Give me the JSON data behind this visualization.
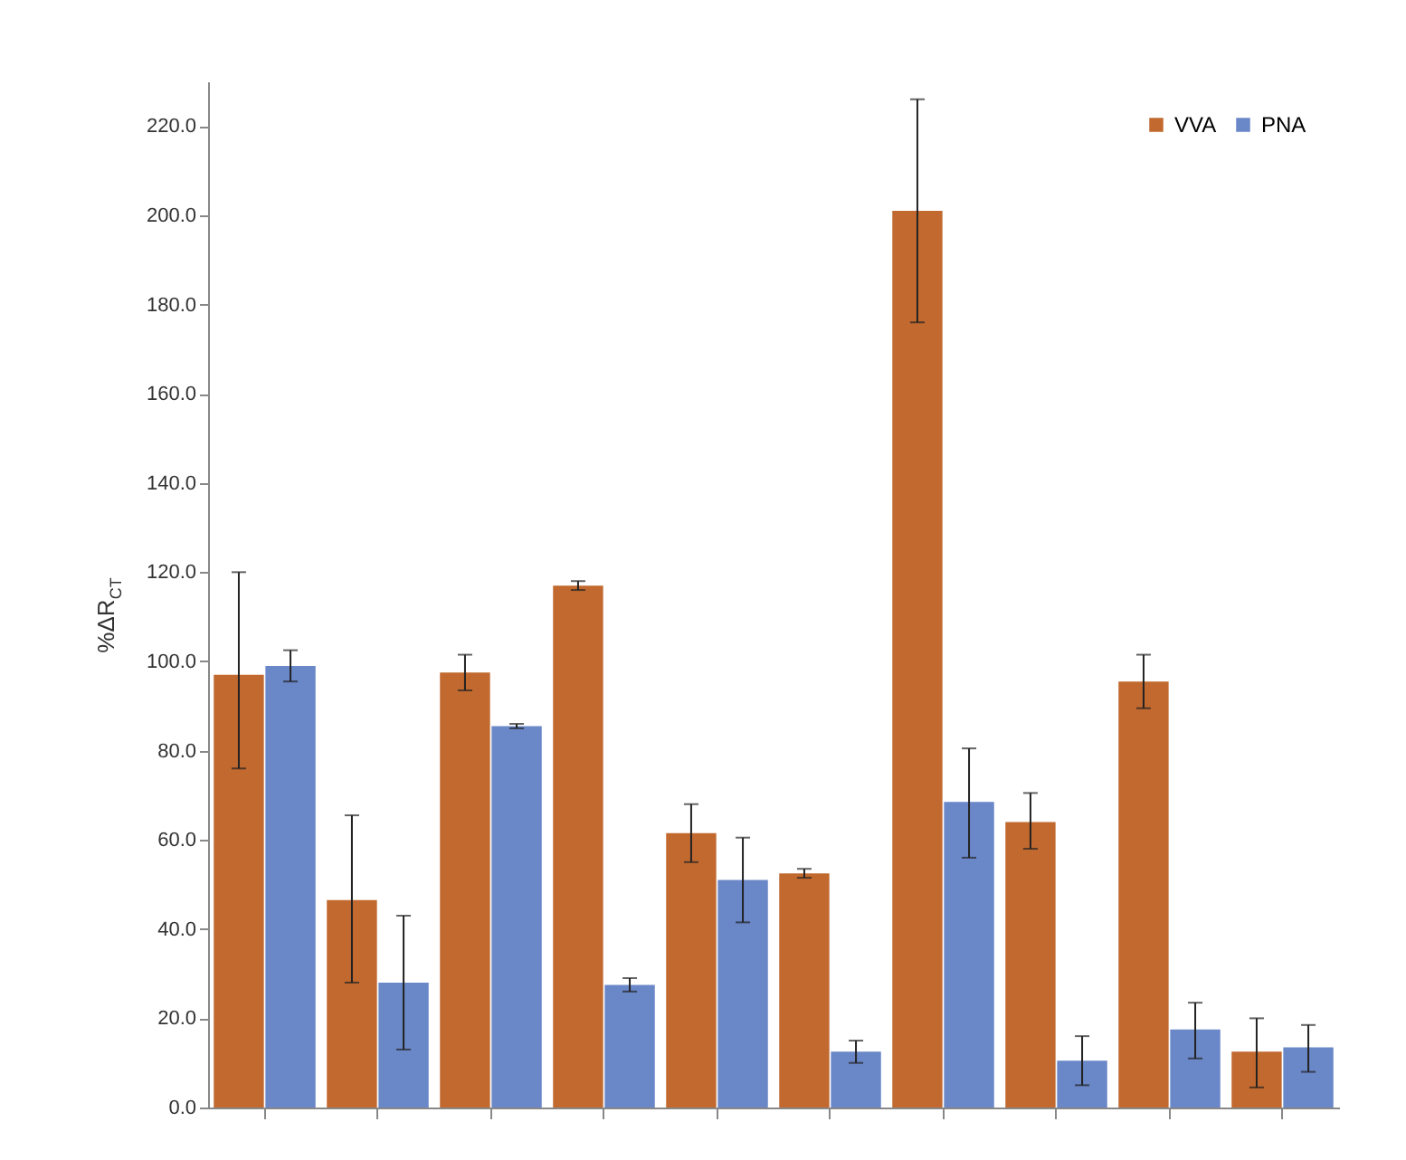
{
  "chart_data": {
    "type": "bar",
    "ylabel": "%ΔR$_{CT}$",
    "categories": [
      null,
      null,
      null,
      null,
      null,
      null,
      null,
      null,
      null,
      null
    ],
    "series": [
      {
        "name": "VVA",
        "color": "#c1692f",
        "values": [
          97,
          46.5,
          97.5,
          117,
          61.5,
          52.5,
          201,
          64,
          95.5,
          12.5
        ],
        "errors": [
          [
            76,
            120
          ],
          [
            28,
            65.5
          ],
          4,
          1,
          6.5,
          1,
          [
            176,
            226
          ],
          [
            58,
            70.5
          ],
          6,
          [
            4.5,
            20
          ]
        ]
      },
      {
        "name": "PNA",
        "color": "#6a87c8",
        "values": [
          99,
          28,
          85.5,
          27.5,
          51,
          12.5,
          68.5,
          10.5,
          17.5,
          13.5
        ],
        "errors": [
          3.5,
          [
            13,
            43
          ],
          0.5,
          1.5,
          9.5,
          2.5,
          [
            56,
            80.5
          ],
          [
            5,
            16
          ],
          [
            11,
            23.5
          ],
          [
            8,
            18.5
          ]
        ]
      }
    ],
    "ylim": [
      0,
      230
    ],
    "yticks": [
      {
        "value": 0,
        "label": "0.0"
      },
      {
        "value": 20,
        "label": "20.0"
      },
      {
        "value": 40,
        "label": "40.0"
      },
      {
        "value": 60,
        "label": "60.0"
      },
      {
        "value": 80,
        "label": "80.0"
      },
      {
        "value": 100,
        "label": "100.0"
      },
      {
        "value": 120,
        "label": "120.0"
      },
      {
        "value": 140,
        "label": "140.0"
      },
      {
        "value": 160,
        "label": "160.0"
      },
      {
        "value": 180,
        "label": "180.0"
      },
      {
        "value": 200,
        "label": "200.0"
      },
      {
        "value": 220,
        "label": "220.0"
      }
    ],
    "grid": false,
    "legend": "top right"
  }
}
